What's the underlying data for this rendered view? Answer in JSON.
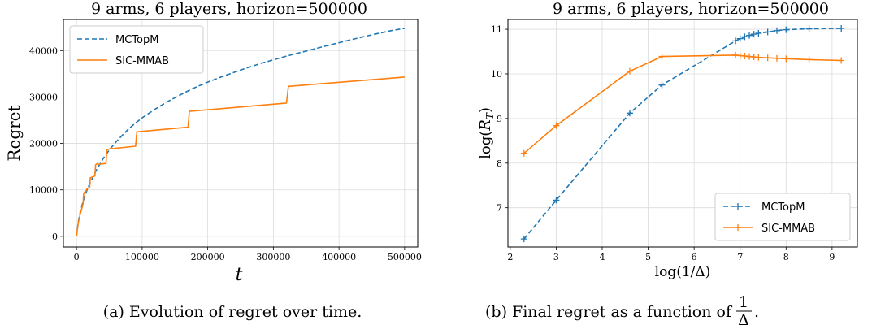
{
  "colors": {
    "mctopm": "#1f77b4",
    "sicmmab": "#ff7f0e",
    "grid": "#dcdcdc"
  },
  "captions": {
    "a": "(a) Evolution of regret over time.",
    "b_prefix": "(b) Final regret as a function of",
    "b_frac_num": "1",
    "b_frac_den": "Δ",
    "b_suffix": "."
  },
  "chart_data": [
    {
      "type": "line",
      "title": "9 arms, 6 players, horizon=500000",
      "xlabel": "t",
      "ylabel": "Regret",
      "xlim": [
        -20000,
        520000
      ],
      "ylim": [
        -2300,
        46700
      ],
      "xticks": [
        0,
        100000,
        200000,
        300000,
        400000,
        500000
      ],
      "yticks": [
        0,
        10000,
        20000,
        30000,
        40000
      ],
      "grid": true,
      "legend": "top-left",
      "series": [
        {
          "name": "MCTopM",
          "style": "dashed",
          "x": [
            0,
            2500,
            5000,
            10000,
            15000,
            20000,
            30000,
            40000,
            50000,
            60000,
            70000,
            80000,
            90000,
            100000,
            120000,
            140000,
            160000,
            180000,
            200000,
            220000,
            250000,
            280000,
            300000,
            320000,
            350000,
            380000,
            400000,
            420000,
            450000,
            480000,
            500000
          ],
          "y": [
            0,
            3000,
            4800,
            7500,
            9600,
            11300,
            14200,
            16600,
            18600,
            20300,
            21800,
            23200,
            24400,
            25500,
            27400,
            29100,
            30600,
            32000,
            33200,
            34300,
            35800,
            37200,
            38000,
            38800,
            39900,
            41000,
            41700,
            42400,
            43400,
            44300,
            44800
          ]
        },
        {
          "name": "SIC-MMAB",
          "style": "solid",
          "x": [
            0,
            2500,
            5000,
            10000,
            11000,
            15000,
            16000,
            20000,
            21000,
            28000,
            29000,
            32000,
            33000,
            45000,
            46000,
            54000,
            55000,
            90000,
            92000,
            170000,
            172000,
            320000,
            323000,
            500000
          ],
          "y": [
            0,
            2800,
            4400,
            7000,
            9300,
            9900,
            10300,
            10500,
            12600,
            13000,
            15400,
            15700,
            15500,
            15700,
            18600,
            19000,
            18900,
            19400,
            22500,
            23500,
            26900,
            28700,
            32300,
            34300
          ]
        }
      ]
    },
    {
      "type": "line",
      "title": "9 arms, 6 players, horizon=500000",
      "xlabel": "log(1/Δ)",
      "ylabel": "log(R_T)",
      "xlim": [
        1.95,
        9.55
      ],
      "ylim": [
        6.12,
        11.22
      ],
      "xticks": [
        2,
        3,
        4,
        5,
        6,
        7,
        8,
        9
      ],
      "yticks": [
        7,
        8,
        9,
        10,
        11
      ],
      "grid": true,
      "legend": "bottom-right",
      "series": [
        {
          "name": "MCTopM",
          "style": "dashed",
          "marker": "+",
          "x": [
            2.3,
            3.0,
            4.6,
            5.3,
            6.9,
            7.0,
            7.1,
            7.2,
            7.3,
            7.4,
            7.6,
            7.8,
            8.0,
            8.5,
            9.2
          ],
          "y": [
            6.3,
            7.17,
            9.12,
            9.75,
            10.74,
            10.79,
            10.83,
            10.86,
            10.89,
            10.91,
            10.94,
            10.97,
            10.99,
            11.01,
            11.02
          ]
        },
        {
          "name": "SIC-MMAB",
          "style": "solid",
          "marker": "+",
          "x": [
            2.3,
            3.0,
            4.6,
            5.3,
            6.9,
            7.0,
            7.1,
            7.2,
            7.3,
            7.4,
            7.6,
            7.8,
            8.0,
            8.5,
            9.2
          ],
          "y": [
            8.22,
            8.84,
            10.06,
            10.39,
            10.42,
            10.41,
            10.4,
            10.39,
            10.38,
            10.37,
            10.36,
            10.35,
            10.34,
            10.32,
            10.3
          ]
        }
      ]
    }
  ]
}
